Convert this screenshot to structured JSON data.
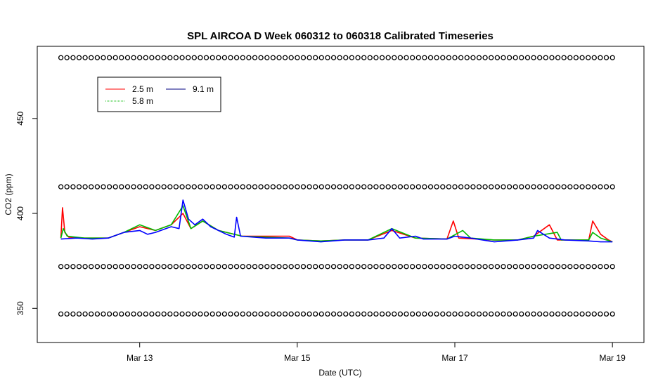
{
  "chart_data": {
    "type": "line",
    "title": "SPL AIRCOA D  Week 060312 to 060318  Calibrated Timeseries",
    "xlabel": "Date (UTC)",
    "ylabel": "CO2 (ppm)",
    "xlim": [
      11.7,
      19.4
    ],
    "ylim": [
      332,
      488
    ],
    "x_ticks": [
      {
        "value": 13,
        "label": "Mar 13"
      },
      {
        "value": 15,
        "label": "Mar 15"
      },
      {
        "value": 17,
        "label": "Mar 17"
      },
      {
        "value": 19,
        "label": "Mar 19"
      }
    ],
    "y_ticks": [
      {
        "value": 350,
        "label": "350"
      },
      {
        "value": 400,
        "label": "400"
      },
      {
        "value": 450,
        "label": "450"
      }
    ],
    "legend": {
      "placement": "top-left",
      "entries": [
        "2.5 m",
        "5.8 m",
        "9.1 m"
      ]
    },
    "series": [
      {
        "name": "2.5 m",
        "color": "#ff0000",
        "points": [
          [
            12.0,
            387
          ],
          [
            12.02,
            403
          ],
          [
            12.05,
            390
          ],
          [
            12.1,
            387.5
          ],
          [
            12.3,
            387
          ],
          [
            12.6,
            387
          ],
          [
            12.8,
            390
          ],
          [
            13.0,
            393
          ],
          [
            13.2,
            391
          ],
          [
            13.4,
            394
          ],
          [
            13.55,
            400
          ],
          [
            13.65,
            392
          ],
          [
            13.8,
            396
          ],
          [
            14.0,
            391
          ],
          [
            14.3,
            388
          ],
          [
            14.6,
            388
          ],
          [
            14.9,
            388
          ],
          [
            15.0,
            386
          ],
          [
            15.3,
            385.5
          ],
          [
            15.6,
            386
          ],
          [
            15.9,
            386
          ],
          [
            16.2,
            391
          ],
          [
            16.5,
            387
          ],
          [
            16.9,
            386.5
          ],
          [
            16.98,
            396
          ],
          [
            17.05,
            387
          ],
          [
            17.5,
            386
          ],
          [
            17.8,
            386
          ],
          [
            18.0,
            388
          ],
          [
            18.2,
            394
          ],
          [
            18.3,
            386
          ],
          [
            18.7,
            386
          ],
          [
            18.75,
            396
          ],
          [
            18.85,
            389
          ],
          [
            18.95,
            386
          ],
          [
            19.0,
            385
          ]
        ]
      },
      {
        "name": "5.8 m",
        "color": "#00bb00",
        "points": [
          [
            12.0,
            387
          ],
          [
            12.03,
            392
          ],
          [
            12.08,
            388
          ],
          [
            12.3,
            387
          ],
          [
            12.6,
            387
          ],
          [
            12.8,
            390
          ],
          [
            13.0,
            394
          ],
          [
            13.2,
            391
          ],
          [
            13.4,
            394
          ],
          [
            13.55,
            404
          ],
          [
            13.65,
            392
          ],
          [
            13.8,
            396
          ],
          [
            14.0,
            391
          ],
          [
            14.3,
            388
          ],
          [
            14.6,
            387.5
          ],
          [
            14.9,
            387
          ],
          [
            15.0,
            386
          ],
          [
            15.3,
            385.5
          ],
          [
            15.6,
            386
          ],
          [
            15.9,
            386
          ],
          [
            16.2,
            392
          ],
          [
            16.5,
            387
          ],
          [
            16.9,
            386.5
          ],
          [
            17.1,
            391
          ],
          [
            17.2,
            387
          ],
          [
            17.5,
            386
          ],
          [
            17.8,
            386
          ],
          [
            18.0,
            388
          ],
          [
            18.3,
            390
          ],
          [
            18.35,
            386
          ],
          [
            18.7,
            386
          ],
          [
            18.75,
            390
          ],
          [
            18.85,
            387
          ],
          [
            19.0,
            385
          ]
        ]
      },
      {
        "name": "9.1 m",
        "color": "#0000ff",
        "points": [
          [
            12.0,
            386.5
          ],
          [
            12.2,
            387
          ],
          [
            12.4,
            386.5
          ],
          [
            12.6,
            387
          ],
          [
            12.8,
            390
          ],
          [
            13.0,
            391
          ],
          [
            13.1,
            389
          ],
          [
            13.2,
            390
          ],
          [
            13.4,
            393
          ],
          [
            13.5,
            392
          ],
          [
            13.55,
            407
          ],
          [
            13.62,
            397
          ],
          [
            13.7,
            394
          ],
          [
            13.8,
            397
          ],
          [
            13.9,
            393
          ],
          [
            14.0,
            391
          ],
          [
            14.1,
            389
          ],
          [
            14.2,
            387.5
          ],
          [
            14.23,
            398
          ],
          [
            14.28,
            388
          ],
          [
            14.6,
            387
          ],
          [
            14.9,
            387
          ],
          [
            15.0,
            386
          ],
          [
            15.3,
            385
          ],
          [
            15.6,
            386
          ],
          [
            15.9,
            386
          ],
          [
            16.1,
            387
          ],
          [
            16.2,
            392
          ],
          [
            16.3,
            387
          ],
          [
            16.5,
            388
          ],
          [
            16.6,
            386.5
          ],
          [
            16.9,
            386.5
          ],
          [
            17.0,
            388
          ],
          [
            17.2,
            387
          ],
          [
            17.5,
            385
          ],
          [
            17.8,
            386
          ],
          [
            18.0,
            387
          ],
          [
            18.05,
            391
          ],
          [
            18.2,
            387
          ],
          [
            18.4,
            386
          ],
          [
            18.7,
            385.5
          ],
          [
            18.85,
            385
          ],
          [
            19.0,
            385
          ]
        ]
      }
    ],
    "marker_rows": [
      {
        "y": 482,
        "start": 12.0,
        "end": 19.0,
        "count": 92
      },
      {
        "y": 414,
        "start": 12.0,
        "end": 19.0,
        "count": 92
      },
      {
        "y": 372,
        "start": 12.0,
        "end": 19.0,
        "count": 92
      },
      {
        "y": 347,
        "start": 12.0,
        "end": 19.0,
        "count": 92
      }
    ],
    "marker_symbol": "o",
    "grid": false
  }
}
